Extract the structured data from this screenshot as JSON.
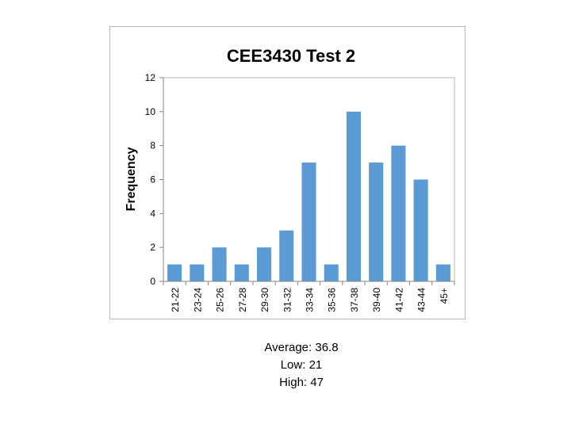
{
  "chart_data": {
    "type": "bar",
    "title": "CEE3430 Test 2",
    "xlabel": "",
    "ylabel": "Frequency",
    "categories": [
      "21-22",
      "23-24",
      "25-26",
      "27-28",
      "29-30",
      "31-32",
      "33-34",
      "35-36",
      "37-38",
      "39-40",
      "41-42",
      "43-44",
      "45+"
    ],
    "values": [
      1,
      1,
      2,
      1,
      2,
      3,
      7,
      1,
      10,
      7,
      8,
      6,
      1
    ],
    "ylim": [
      0,
      12
    ],
    "yticks": [
      0,
      2,
      4,
      6,
      8,
      10,
      12
    ],
    "grid": false,
    "legend": "none",
    "bar_color": "#5b9bd5"
  },
  "stats": {
    "average": "Average: 36.8",
    "low": "Low: 21",
    "high": "High: 47"
  }
}
